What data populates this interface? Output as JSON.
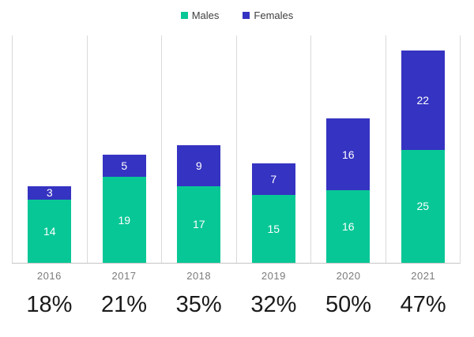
{
  "chart_data": {
    "type": "bar",
    "stacked": true,
    "title": "",
    "categories": [
      "2016",
      "2017",
      "2018",
      "2019",
      "2020",
      "2021"
    ],
    "series": [
      {
        "name": "Males",
        "color": "#08c796",
        "values": [
          14,
          19,
          17,
          15,
          16,
          25
        ]
      },
      {
        "name": "Females",
        "color": "#3533c1",
        "values": [
          3,
          5,
          9,
          7,
          16,
          22
        ]
      }
    ],
    "totals": [
      17,
      24,
      26,
      22,
      32,
      47
    ],
    "percent_labels": [
      "18%",
      "21%",
      "35%",
      "32%",
      "50%",
      "47%"
    ],
    "ylim": [
      0,
      50.5
    ],
    "grid": "vertical column separators only, no horizontal gridlines",
    "legend_position": "top-center",
    "bar_labels": "white value labels centered inside each segment",
    "colors": {
      "bar_label": "#ffffff",
      "category_label": "#7b7b7b",
      "percent_label": "#1a1a1a",
      "gridline": "#d9d9d9",
      "axis_line": "#c6c6c6",
      "legend_text": "#3f3f3f",
      "background": "#ffffff"
    }
  }
}
